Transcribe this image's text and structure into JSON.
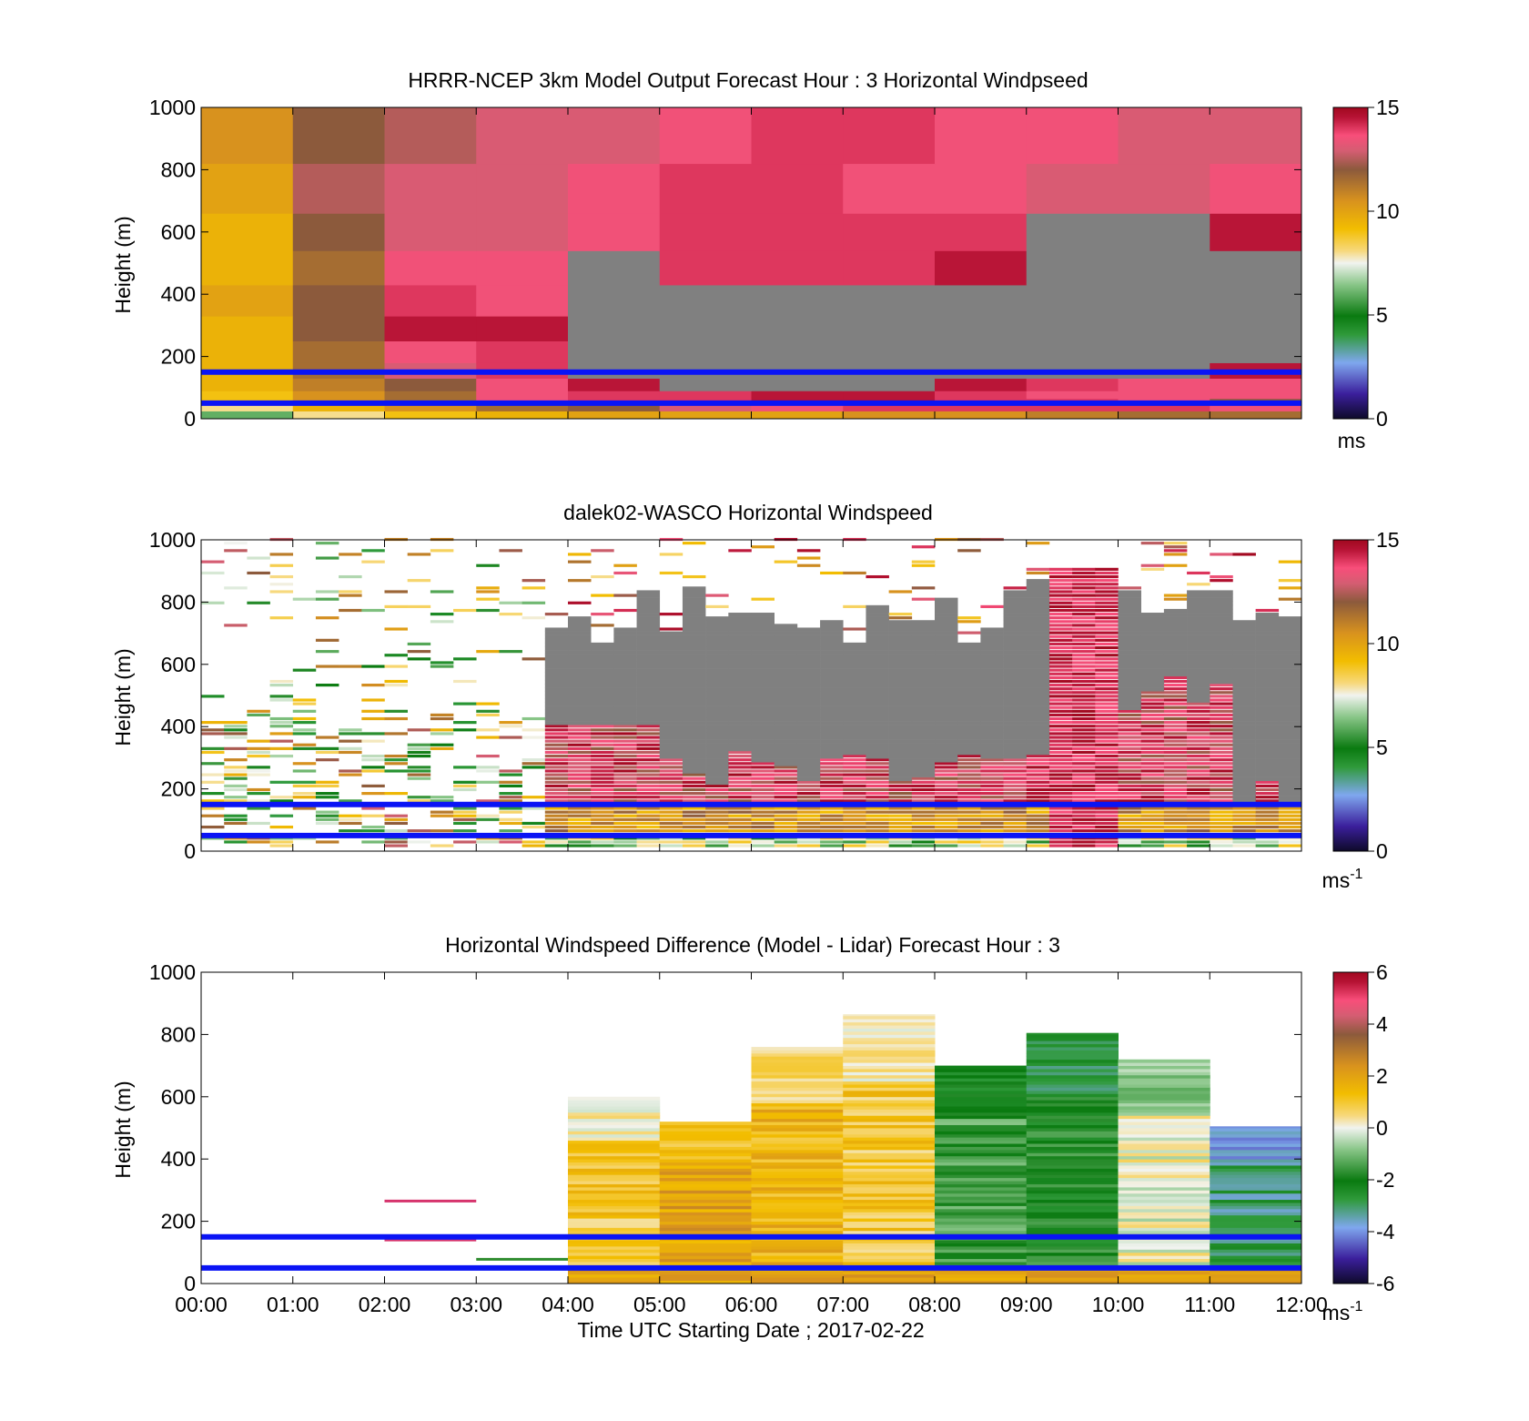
{
  "chart_data": [
    {
      "type": "heatmap",
      "title": "HRRR-NCEP 3km Model Output   Forecast Hour : 3 Horizontal Windpseed",
      "ylabel": "Height (m)",
      "xlabel": "",
      "ylim": [
        0,
        1000
      ],
      "yticks": [
        "0",
        "200",
        "400",
        "600",
        "800",
        "1000"
      ],
      "colorbar": {
        "range": [
          0,
          15
        ],
        "ticks": [
          "0",
          "5",
          "10",
          "15"
        ],
        "unit": "ms",
        "unit_sup": ""
      },
      "reference_lines_m": [
        50,
        150
      ],
      "grid": false,
      "x_hours": [
        0,
        1,
        2,
        3,
        4,
        5,
        6,
        7,
        8,
        9,
        10,
        11,
        12
      ],
      "columns_approx_windspeed_bottom_to_top": [
        [
          6,
          8,
          9,
          9.5,
          10,
          10,
          10,
          10.5,
          10.5,
          11,
          11.5,
          11.5,
          12
        ],
        [
          8,
          9.5,
          10.5,
          11.5,
          12,
          13,
          13.5,
          14,
          14,
          14,
          14,
          13.5,
          13.5
        ],
        [
          9,
          10.5,
          11.5,
          13.5,
          14,
          14,
          14.5,
          14.5,
          14,
          14,
          13.5,
          12,
          12.5
        ],
        [
          9,
          10.5,
          11.5,
          13.5,
          14,
          14,
          14.5,
          14.5,
          14,
          13.5,
          13.5,
          13.5,
          12.5
        ],
        [
          9.5,
          11,
          12,
          13.5,
          14.5,
          null,
          null,
          null,
          14.5,
          14,
          13.5,
          13.5,
          12.5
        ],
        [
          9.5,
          11.5,
          13,
          14,
          null,
          null,
          null,
          null,
          null,
          null,
          null,
          14.5,
          14
        ],
        [
          9.5,
          11.5,
          13.5,
          14,
          null,
          null,
          null,
          null,
          null,
          null,
          null,
          null,
          null
        ],
        [
          9.5,
          12,
          14.5,
          14.5,
          null,
          null,
          null,
          null,
          null,
          null,
          null,
          null,
          14.5
        ],
        [
          10,
          12,
          14,
          13.5,
          null,
          null,
          null,
          null,
          null,
          null,
          null,
          null,
          15
        ],
        [
          9.5,
          11.5,
          13.5,
          13.5,
          null,
          14,
          14,
          14,
          14.5,
          null,
          null,
          null,
          null
        ],
        [
          9.5,
          12,
          13,
          13,
          13.5,
          14,
          14,
          14,
          14,
          null,
          null,
          14.5,
          14.5
        ],
        [
          10,
          12.5,
          13,
          13,
          13.5,
          14,
          14,
          13.5,
          13.5,
          13,
          13,
          13.5,
          13.5
        ],
        [
          10.5,
          12,
          12.5,
          13,
          13,
          13.5,
          14,
          14,
          13.5,
          13.5,
          13,
          13,
          13.5
        ]
      ]
    },
    {
      "type": "heatmap",
      "title": "dalek02-WASCO  Horizontal Windspeed",
      "ylabel": "Height (m)",
      "xlabel": "",
      "ylim": [
        0,
        1000
      ],
      "yticks": [
        "0",
        "200",
        "400",
        "600",
        "800",
        "1000"
      ],
      "colorbar": {
        "range": [
          0,
          15
        ],
        "ticks": [
          "0",
          "5",
          "10",
          "15"
        ],
        "unit": "ms",
        "unit_sup": "-1"
      },
      "reference_lines_m": [
        50,
        150
      ],
      "grid": false,
      "x_hours": [
        0,
        1,
        2,
        3,
        4,
        5,
        6,
        7,
        8,
        9,
        10,
        11,
        12
      ],
      "notes": "Sparse returns before ~04:00; above ~200-900 m many gates are missing (grey) after 04:00; strong winds (13-15) near 09:30-10:00."
    },
    {
      "type": "heatmap",
      "title": "Horizontal Windspeed Difference (Model - Lidar) Forecast Hour : 3",
      "ylabel": "Height (m)",
      "xlabel": "Time UTC  Starting Date ; 2017-02-22",
      "ylim": [
        0,
        1000
      ],
      "yticks": [
        "0",
        "200",
        "400",
        "600",
        "800",
        "1000"
      ],
      "xticks": [
        "00:00",
        "01:00",
        "02:00",
        "03:00",
        "04:00",
        "05:00",
        "06:00",
        "07:00",
        "08:00",
        "09:00",
        "10:00",
        "11:00",
        "12:00"
      ],
      "colorbar": {
        "range": [
          -6,
          6
        ],
        "ticks": [
          "-6",
          "-4",
          "-2",
          "0",
          "2",
          "4",
          "6"
        ],
        "unit": "ms",
        "unit_sup": "-1"
      },
      "reference_lines_m": [
        50,
        150
      ],
      "grid": false,
      "x_hours": [
        0,
        1,
        2,
        3,
        4,
        5,
        6,
        7,
        8,
        9,
        10,
        11,
        12
      ],
      "hourly_column_tops_m": [
        null,
        null,
        null,
        null,
        600,
        520,
        760,
        865,
        700,
        805,
        720,
        505
      ],
      "hourly_mean_difference_approx": [
        null,
        null,
        null,
        null,
        1.0,
        2.0,
        1.5,
        1.0,
        -1.5,
        -2.0,
        0.0,
        -3.0
      ]
    }
  ]
}
